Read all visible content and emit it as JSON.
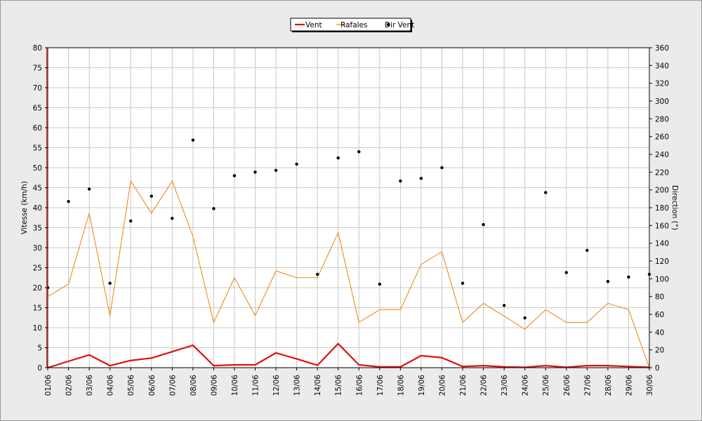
{
  "chart_data": {
    "type": "line",
    "x": [
      "01/06",
      "02/06",
      "03/06",
      "04/06",
      "05/06",
      "06/06",
      "07/06",
      "08/06",
      "09/06",
      "10/06",
      "11/06",
      "12/06",
      "13/06",
      "14/06",
      "15/06",
      "16/06",
      "17/06",
      "18/06",
      "19/06",
      "20/06",
      "21/06",
      "22/06",
      "23/06",
      "24/06",
      "25/06",
      "26/06",
      "27/06",
      "28/06",
      "29/06",
      "30/06"
    ],
    "y_left": {
      "label": "Vitesse (km/h)",
      "lim": [
        0,
        80
      ],
      "ticks": [
        0,
        5,
        10,
        15,
        20,
        25,
        30,
        35,
        40,
        45,
        50,
        55,
        60,
        65,
        70,
        75,
        80
      ]
    },
    "y_right": {
      "label": "Direction (°)",
      "lim": [
        0,
        360
      ],
      "ticks": [
        0,
        20,
        40,
        60,
        80,
        100,
        120,
        140,
        160,
        180,
        200,
        220,
        240,
        260,
        280,
        300,
        320,
        340,
        360
      ]
    },
    "grid": true,
    "legend_position": "top-center",
    "series": [
      {
        "name": "Vent",
        "kind": "line",
        "axis": "left",
        "color": "#e01010",
        "values": [
          0,
          1.6,
          3.2,
          0.5,
          1.8,
          2.4,
          4.0,
          5.6,
          0.5,
          0.7,
          0.7,
          3.7,
          2.2,
          0.6,
          6.0,
          0.7,
          0.2,
          0.2,
          3.0,
          2.5,
          0.3,
          0.5,
          0.2,
          0.1,
          0.5,
          0.1,
          0.5,
          0.5,
          0.3,
          0.1
        ]
      },
      {
        "name": "Rafales",
        "kind": "line",
        "axis": "left",
        "color": "#f08c1a",
        "values": [
          17.8,
          20.9,
          38.6,
          13.0,
          46.7,
          38.6,
          46.7,
          32.8,
          11.3,
          22.5,
          13.0,
          24.2,
          22.5,
          22.5,
          33.8,
          11.3,
          14.5,
          14.5,
          25.8,
          29.0,
          11.3,
          16.1,
          12.9,
          9.6,
          14.5,
          11.3,
          11.3,
          16.1,
          14.5,
          0
        ]
      },
      {
        "name": "Dir Vent",
        "kind": "scatter",
        "axis": "right",
        "color": "#000000",
        "values": [
          90,
          187,
          201,
          95,
          165,
          193,
          168,
          256,
          179,
          216,
          220,
          222,
          229,
          105,
          236,
          243,
          94,
          210,
          213,
          225,
          95,
          161,
          70,
          56,
          197,
          107,
          132,
          97,
          102,
          105
        ]
      }
    ]
  }
}
